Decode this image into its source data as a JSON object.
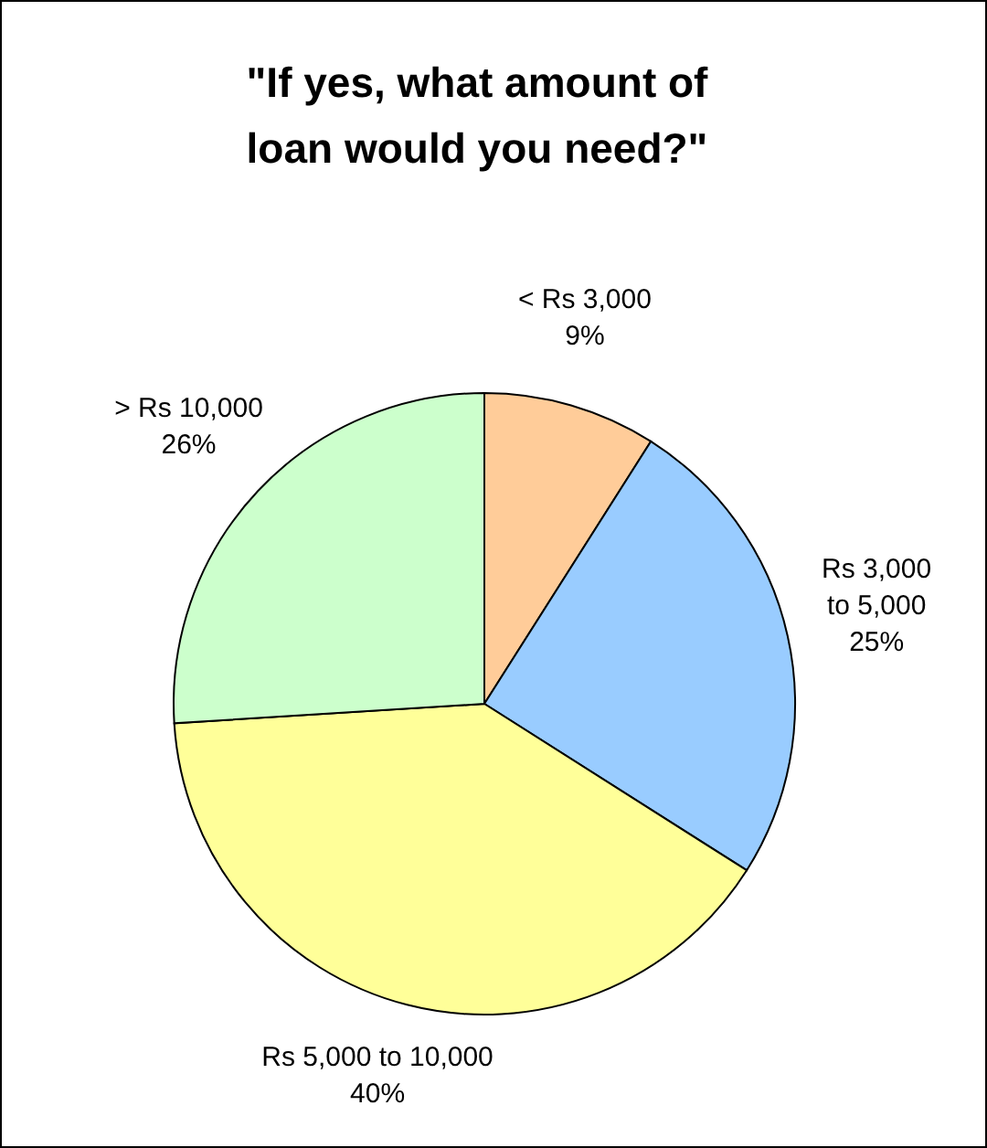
{
  "chart_data": {
    "type": "pie",
    "title": "\"If yes, what amount of loan would you need?\"",
    "categories": [
      "< Rs 3,000",
      "Rs 3,000 to 5,000",
      "Rs 5,000 to 10,000",
      "> Rs 10,000"
    ],
    "values": [
      9,
      25,
      40,
      26
    ],
    "colors": [
      "#ffcc99",
      "#99ccff",
      "#ffff99",
      "#ccffcc"
    ],
    "value_labels": [
      "9%",
      "25%",
      "40%",
      "26%"
    ],
    "legend": false
  }
}
